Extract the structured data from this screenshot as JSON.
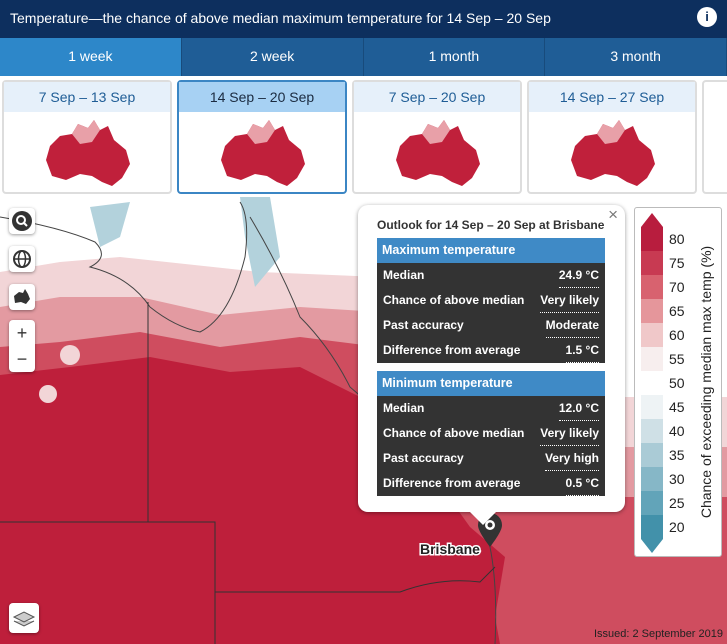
{
  "header": {
    "title": "Temperature—the chance of above median maximum temperature for 14 Sep – 20 Sep",
    "info": "i"
  },
  "tabs": {
    "items": [
      "1 week",
      "2 week",
      "1 month",
      "3 month"
    ],
    "active": 0
  },
  "periods": {
    "items": [
      "7 Sep – 13 Sep",
      "14 Sep – 20 Sep",
      "7 Sep – 20 Sep",
      "14 Sep – 27 Sep"
    ],
    "selected": 1
  },
  "map": {
    "place": "Brisbane",
    "zoom_in": "+",
    "zoom_out": "−",
    "issued": "Issued: 2 September 2019"
  },
  "popup": {
    "close": "×",
    "title": "Outlook for 14 Sep – 20 Sep at Brisbane",
    "sections": [
      {
        "heading": "Maximum temperature",
        "rows": [
          [
            "Median",
            "24.9 °C"
          ],
          [
            "Chance of above median",
            "Very likely"
          ],
          [
            "Past accuracy",
            "Moderate"
          ],
          [
            "Difference from average",
            "1.5 °C"
          ]
        ]
      },
      {
        "heading": "Minimum temperature",
        "rows": [
          [
            "Median",
            "12.0 °C"
          ],
          [
            "Chance of above median",
            "Very likely"
          ],
          [
            "Past accuracy",
            "Very high"
          ],
          [
            "Difference from average",
            "0.5 °C"
          ]
        ]
      }
    ]
  },
  "legend": {
    "title": "Chance of exceeding median max temp (%)",
    "ticks": [
      80,
      75,
      70,
      65,
      60,
      55,
      50,
      45,
      40,
      35,
      30,
      25,
      20
    ],
    "colors": [
      "#b81d3e",
      "#c83a52",
      "#d8626f",
      "#e5969b",
      "#f0c8c9",
      "#f7eeee",
      "#ffffff",
      "#eef3f5",
      "#cfe0e6",
      "#aacbd6",
      "#86b7c7",
      "#62a4b9",
      "#4291aa"
    ]
  }
}
